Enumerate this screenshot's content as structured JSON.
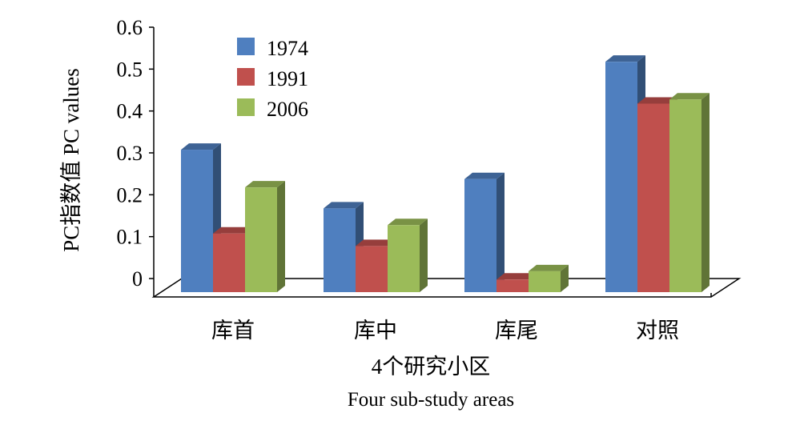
{
  "chart_data": {
    "type": "bar",
    "subtype": "3d-clustered-column",
    "title": "",
    "categories": [
      "库首",
      "库中",
      "库尾",
      "对照"
    ],
    "series": [
      {
        "name": "1974",
        "values": [
          0.34,
          0.2,
          0.27,
          0.55
        ],
        "color": "#4f7fbf"
      },
      {
        "name": "1991",
        "values": [
          0.14,
          0.11,
          0.03,
          0.45
        ],
        "color": "#c0504d"
      },
      {
        "name": "2006",
        "values": [
          0.25,
          0.16,
          0.05,
          0.46
        ],
        "color": "#9bbb59"
      }
    ],
    "ylim": [
      0,
      0.6
    ],
    "yticks": [
      "0",
      "0.1",
      "0.2",
      "0.3",
      "0.4",
      "0.5",
      "0.6"
    ],
    "ylabel": "PC指数值 PC values",
    "xlabel_cn": "4个研究小区",
    "xlabel_en": "Four sub-study areas",
    "legend_position": "top-left",
    "grid": false
  }
}
